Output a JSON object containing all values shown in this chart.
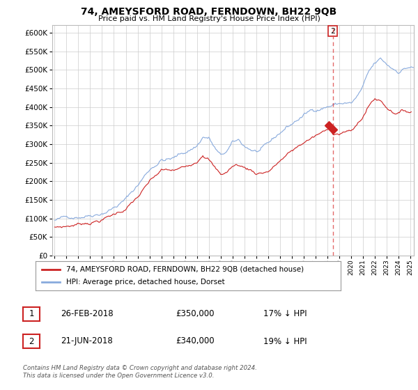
{
  "title": "74, AMEYSFORD ROAD, FERNDOWN, BH22 9QB",
  "subtitle": "Price paid vs. HM Land Registry's House Price Index (HPI)",
  "hpi_label": "HPI: Average price, detached house, Dorset",
  "price_label": "74, AMEYSFORD ROAD, FERNDOWN, BH22 9QB (detached house)",
  "footer": "Contains HM Land Registry data © Crown copyright and database right 2024.\nThis data is licensed under the Open Government Licence v3.0.",
  "transactions": [
    {
      "num": 1,
      "date": "26-FEB-2018",
      "price": "£350,000",
      "pct": "17% ↓ HPI",
      "year": 2018.14
    },
    {
      "num": 2,
      "date": "21-JUN-2018",
      "price": "£340,000",
      "pct": "19% ↓ HPI",
      "year": 2018.47
    }
  ],
  "vline_year": 2018.47,
  "vline_color": "#d44",
  "marker1_year": 2018.14,
  "marker1_price": 350000,
  "marker2_year": 2018.47,
  "marker2_price": 340000,
  "label2_year": 2018.47,
  "hpi_color": "#88aadd",
  "price_color": "#cc2222",
  "ylim": [
    0,
    620000
  ],
  "xlim": [
    1994.8,
    2025.3
  ],
  "yticks": [
    0,
    50000,
    100000,
    150000,
    200000,
    250000,
    300000,
    350000,
    400000,
    450000,
    500000,
    550000,
    600000
  ],
  "xtick_years": [
    1995,
    1996,
    1997,
    1998,
    1999,
    2000,
    2001,
    2002,
    2003,
    2004,
    2005,
    2006,
    2007,
    2008,
    2009,
    2010,
    2011,
    2012,
    2013,
    2014,
    2015,
    2016,
    2017,
    2018,
    2019,
    2020,
    2021,
    2022,
    2023,
    2024,
    2025
  ],
  "bg_color": "#ffffff",
  "grid_color": "#cccccc"
}
